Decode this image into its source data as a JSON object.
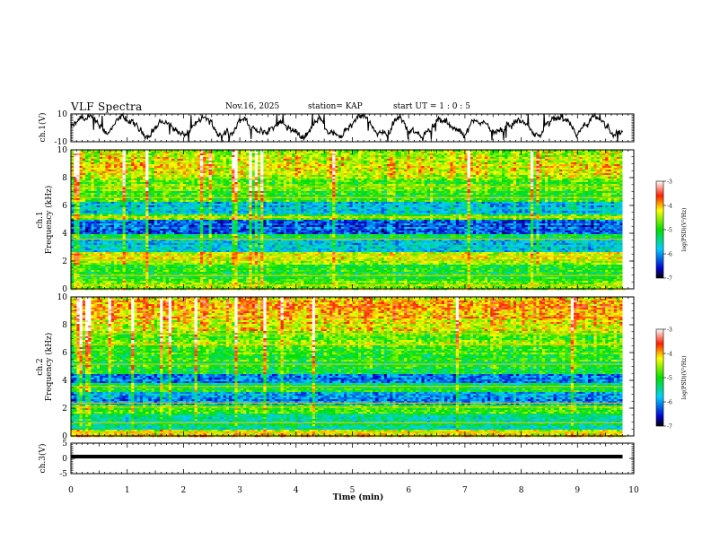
{
  "header": {
    "title": "VLF Spectra",
    "date": "Nov.16, 2025",
    "station": "station= KAP",
    "start": "start  UT =   1 : 0  : 5"
  },
  "chart_data": [
    {
      "type": "line",
      "panel": "ch1-waveform",
      "ylabel": "ch.1(V)",
      "ylim": [
        -10,
        10
      ],
      "yticks": [
        "10",
        "-10"
      ],
      "xlim": [
        0,
        10
      ],
      "series_note": "noisy waveform of ch.1 voltage, roughly between -10 and 10 V over 0-9.8 min"
    },
    {
      "type": "heatmap",
      "panel": "ch1-spectrogram",
      "ylabel": "ch.1\nFrequency (kHz)",
      "ylim": [
        0,
        10
      ],
      "yticks": [
        "0",
        "2",
        "4",
        "6",
        "8",
        "10"
      ],
      "xlim": [
        0,
        10
      ],
      "colorbar": {
        "label": "log(PSD)(V²/Hz)",
        "range": [
          -7,
          -3
        ],
        "ticks": [
          "-3",
          "-4",
          "-5",
          "-6",
          "-7"
        ]
      },
      "bands_khz": [
        {
          "lo": 0.0,
          "hi": 0.6,
          "level": -4.5
        },
        {
          "lo": 0.6,
          "hi": 1.8,
          "level": -5.0
        },
        {
          "lo": 1.8,
          "hi": 2.6,
          "level": -4.4
        },
        {
          "lo": 2.6,
          "hi": 3.0,
          "level": -5.6
        },
        {
          "lo": 3.0,
          "hi": 3.6,
          "level": -5.8
        },
        {
          "lo": 3.6,
          "hi": 4.0,
          "level": -5.2
        },
        {
          "lo": 4.0,
          "hi": 5.0,
          "level": -6.2
        },
        {
          "lo": 5.0,
          "hi": 5.4,
          "level": -4.8
        },
        {
          "lo": 5.4,
          "hi": 6.2,
          "level": -5.7
        },
        {
          "lo": 6.2,
          "hi": 7.0,
          "level": -5.0
        },
        {
          "lo": 7.0,
          "hi": 8.0,
          "level": -4.8
        },
        {
          "lo": 8.0,
          "hi": 9.5,
          "level": -4.3
        },
        {
          "lo": 9.5,
          "hi": 10.0,
          "level": -4.6
        }
      ]
    },
    {
      "type": "heatmap",
      "panel": "ch2-spectrogram",
      "ylabel": "ch.2\nFrequency (kHz)",
      "ylim": [
        0,
        10
      ],
      "yticks": [
        "0",
        "2",
        "4",
        "6",
        "8",
        "10"
      ],
      "xlim": [
        0,
        10
      ],
      "colorbar": {
        "label": "log(PSD)(V²/Hz)",
        "range": [
          -7,
          -3
        ],
        "ticks": [
          "-3",
          "-4",
          "-5",
          "-6",
          "-7"
        ]
      },
      "bands_khz": [
        {
          "lo": 0.0,
          "hi": 0.4,
          "level": -4.2
        },
        {
          "lo": 0.4,
          "hi": 1.6,
          "level": -5.4
        },
        {
          "lo": 1.6,
          "hi": 2.2,
          "level": -4.9
        },
        {
          "lo": 2.2,
          "hi": 3.2,
          "level": -6.1
        },
        {
          "lo": 3.2,
          "hi": 3.8,
          "level": -5.2
        },
        {
          "lo": 3.8,
          "hi": 4.5,
          "level": -6.0
        },
        {
          "lo": 4.5,
          "hi": 5.4,
          "level": -5.1
        },
        {
          "lo": 5.4,
          "hi": 6.4,
          "level": -4.9
        },
        {
          "lo": 6.4,
          "hi": 7.5,
          "level": -4.7
        },
        {
          "lo": 7.5,
          "hi": 8.5,
          "level": -4.3
        },
        {
          "lo": 8.5,
          "hi": 10.0,
          "level": -4.0
        }
      ]
    },
    {
      "type": "line",
      "panel": "ch3-waveform",
      "ylabel": "ch.3(V)",
      "ylim": [
        -5,
        5
      ],
      "yticks": [
        "5",
        "0",
        "-5"
      ],
      "xlim": [
        0,
        10
      ],
      "xlabel": "Time (min)",
      "xticks": [
        "0",
        "1",
        "2",
        "3",
        "4",
        "5",
        "6",
        "7",
        "8",
        "9",
        "10"
      ],
      "series_note": "near-constant band slightly above 0 V spanning 0-9.8 min"
    }
  ]
}
